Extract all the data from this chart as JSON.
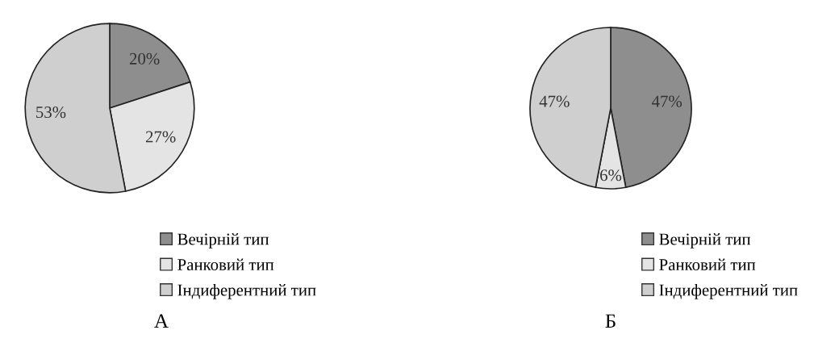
{
  "chart_data": [
    {
      "type": "pie",
      "title": "А",
      "categories": [
        "Вечірній тип",
        "Ранковий тип",
        "Індиферентний тип"
      ],
      "values": [
        20,
        27,
        53
      ],
      "value_labels": [
        "20%",
        "27%",
        "53%"
      ],
      "colors": [
        "#8e8e8e",
        "#e4e4e4",
        "#cfcfcf"
      ],
      "legend": "bottom right"
    },
    {
      "type": "pie",
      "title": "Б",
      "categories": [
        "Вечірній тип",
        "Ранковий тип",
        "Індиферентний тип"
      ],
      "values": [
        47,
        6,
        47
      ],
      "value_labels": [
        "47%",
        "6%",
        "47%"
      ],
      "colors": [
        "#8e8e8e",
        "#e4e4e4",
        "#cfcfcf"
      ],
      "legend": "bottom right"
    }
  ]
}
